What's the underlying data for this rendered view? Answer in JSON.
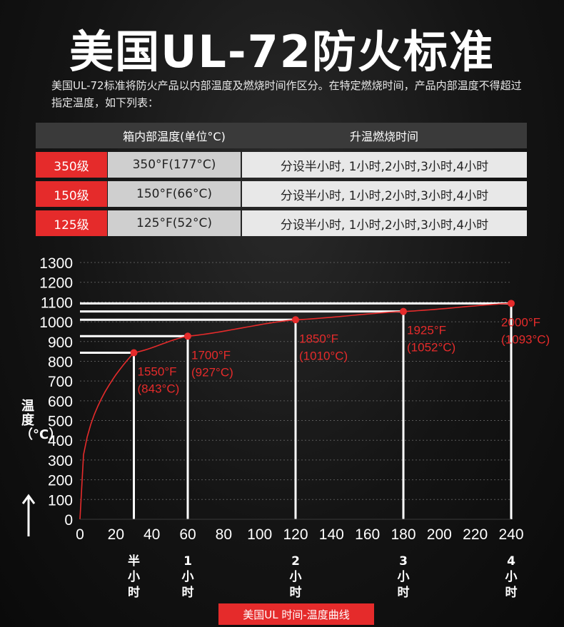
{
  "title": "美国UL-72防火标准",
  "description": "美国UL-72标准将防火产品以内部温度及燃烧时间作区分。在特定燃烧时间，产品内部温度不得超过指定温度，如下列表：",
  "table": {
    "headers": [
      "",
      "箱内部温度(单位°C)",
      "升温燃烧时间"
    ],
    "rows": [
      {
        "grade": "350级",
        "temp": "350°F(177°C)",
        "time": "分设半小时, 1小时,2小时,3小时,4小时"
      },
      {
        "grade": "150级",
        "temp": "150°F(66°C)",
        "time": "分设半小时, 1小时,2小时,3小时,4小时"
      },
      {
        "grade": "125级",
        "temp": "125°F(52°C)",
        "time": "分设半小时, 1小时,2小时,3小时,4小时"
      }
    ]
  },
  "chart_data": {
    "type": "line",
    "ylabel": "温度（°C）",
    "xlim": [
      0,
      240
    ],
    "ylim": [
      0,
      1300
    ],
    "x_ticks": [
      0,
      20,
      40,
      60,
      80,
      100,
      120,
      140,
      160,
      180,
      200,
      220,
      240
    ],
    "y_ticks": [
      0,
      100,
      200,
      300,
      400,
      500,
      600,
      700,
      800,
      900,
      1000,
      1100,
      1200,
      1300
    ],
    "points": [
      {
        "x": 30,
        "y": 843,
        "label_f": "1550°F",
        "label_c": "(843°C)",
        "time_label": "半小时"
      },
      {
        "x": 60,
        "y": 927,
        "label_f": "1700°F",
        "label_c": "(927°C)",
        "time_label": "1小时"
      },
      {
        "x": 120,
        "y": 1010,
        "label_f": "1850°F",
        "label_c": "(1010°C)",
        "time_label": "2小时"
      },
      {
        "x": 180,
        "y": 1052,
        "label_f": "1925°F",
        "label_c": "(1052°C)",
        "time_label": "3小时"
      },
      {
        "x": 240,
        "y": 1093,
        "label_f": "2000°F",
        "label_c": "(1093°C)",
        "time_label": "4小时"
      }
    ],
    "curve_color": "#e52b2b",
    "grid": true
  },
  "caption": "美国UL 时间-温度曲线",
  "colors": {
    "accent": "#e52b2b"
  }
}
